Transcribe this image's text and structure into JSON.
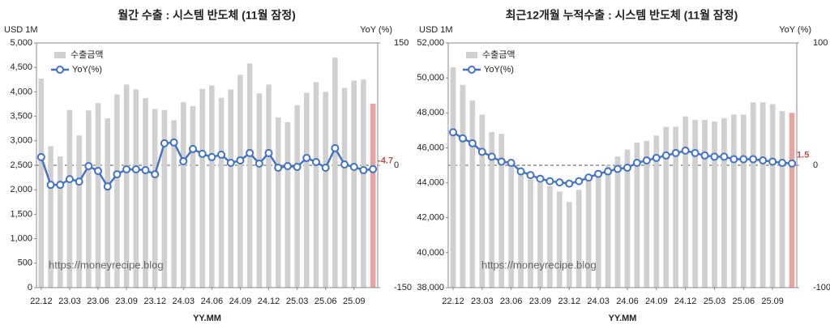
{
  "chart_data": [
    {
      "type": "bar-line",
      "title": "월간 수출 : 시스템 반도체 (11월 잠정)",
      "y_unit": "USD 1M",
      "y2_unit": "YoY (%)",
      "x_label": "YY.MM",
      "watermark": "https://moneyrecipe.blog",
      "categories": [
        "22.12",
        null,
        null,
        "23.03",
        null,
        null,
        "23.06",
        null,
        null,
        "23.09",
        null,
        null,
        "23.12",
        null,
        null,
        "24.03",
        null,
        null,
        "24.06",
        null,
        null,
        "24.09",
        null,
        null,
        "24.12",
        null,
        null,
        "25.03",
        null,
        null,
        "25.06",
        null,
        null,
        "25.09",
        null,
        null
      ],
      "series": [
        {
          "name": "수출금액",
          "color": "#d0d0d0",
          "highlight_color": "#e8a3a3",
          "values": [
            4270,
            2890,
            2680,
            3630,
            3110,
            3620,
            3770,
            3460,
            3950,
            4150,
            4050,
            3870,
            3650,
            3630,
            3420,
            3790,
            3710,
            4060,
            4130,
            3880,
            4050,
            4350,
            4580,
            3970,
            4150,
            3480,
            3380,
            3730,
            3980,
            4200,
            4000,
            4700,
            4080,
            4230,
            4250,
            3760
          ]
        },
        {
          "name": "YoY(%)",
          "color": "#4472c4",
          "axis": "y2",
          "values": [
            10,
            -24,
            -24,
            -17,
            -20,
            -1,
            -7,
            -26,
            -11,
            -5,
            -5,
            -6,
            -11,
            27,
            28,
            5,
            20,
            14,
            10,
            13,
            3,
            6,
            15,
            2,
            15,
            -3,
            -1,
            -2,
            9,
            4,
            -3,
            21,
            1,
            -2,
            -6,
            -4.7
          ]
        }
      ],
      "ylim": [
        0,
        5000
      ],
      "yticks": [
        0,
        500,
        {
          "value": 1000,
          "label": "1,000"
        },
        {
          "value": 1500,
          "label": "1,500"
        },
        {
          "value": 2000,
          "label": "2,000"
        },
        {
          "value": 2500,
          "label": "2,500"
        },
        {
          "value": 3000,
          "label": "3,000"
        },
        {
          "value": 3500,
          "label": "3,500"
        },
        {
          "value": 4000,
          "label": "4,000"
        },
        {
          "value": 4500,
          "label": "4,500"
        },
        {
          "value": 5000,
          "label": "5,000"
        }
      ],
      "y2lim": [
        -150,
        150
      ],
      "y2ticks": [
        -150,
        0,
        150
      ],
      "legend": "upper left"
    },
    {
      "type": "bar-line",
      "title": "최근12개월 누적수출 : 시스템 반도체 (11월 잠정)",
      "y_unit": "USD 1M",
      "y2_unit": "YoY (%)",
      "x_label": "YY.MM",
      "watermark": "https://moneyrecipe.blog",
      "categories": [
        "22.12",
        null,
        null,
        "23.03",
        null,
        null,
        "23.06",
        null,
        null,
        "23.09",
        null,
        null,
        "23.12",
        null,
        null,
        "24.03",
        null,
        null,
        "24.06",
        null,
        null,
        "24.09",
        null,
        null,
        "24.12",
        null,
        null,
        "25.03",
        null,
        null,
        "25.06",
        null,
        null,
        "25.09",
        null,
        null
      ],
      "series": [
        {
          "name": "수출금액",
          "color": "#d0d0d0",
          "highlight_color": "#e8a3a3",
          "values": [
            50600,
            49600,
            48700,
            47900,
            46900,
            46800,
            45200,
            44600,
            44200,
            44000,
            43800,
            43500,
            42900,
            43600,
            44300,
            44700,
            45000,
            45500,
            45900,
            46300,
            46400,
            46700,
            47200,
            47200,
            47800,
            47600,
            47600,
            47500,
            47700,
            47900,
            47900,
            48600,
            48600,
            48500,
            48100,
            48000
          ]
        },
        {
          "name": "YoY(%)",
          "color": "#4472c4",
          "axis": "y2",
          "values": [
            27,
            22,
            18,
            11,
            7,
            3,
            2,
            -5,
            -8,
            -11,
            -13,
            -14,
            -15,
            -13,
            -10,
            -7,
            -5,
            -3,
            -2,
            2,
            4,
            6,
            8,
            10,
            12,
            10,
            8,
            7,
            7,
            5,
            5,
            5,
            4,
            3,
            2,
            1.5
          ]
        }
      ],
      "ylim": [
        38000,
        52000
      ],
      "yticks": [
        {
          "value": 38000,
          "label": "38,000"
        },
        {
          "value": 40000,
          "label": "40,000"
        },
        {
          "value": 42000,
          "label": "42,000"
        },
        {
          "value": 44000,
          "label": "44,000"
        },
        {
          "value": 46000,
          "label": "46,000"
        },
        {
          "value": 48000,
          "label": "48,000"
        },
        {
          "value": 50000,
          "label": "50,000"
        },
        {
          "value": 52000,
          "label": "52,000"
        }
      ],
      "y2lim": [
        -100,
        100
      ],
      "y2ticks": [
        -100,
        0,
        100
      ],
      "legend": "upper left"
    }
  ]
}
